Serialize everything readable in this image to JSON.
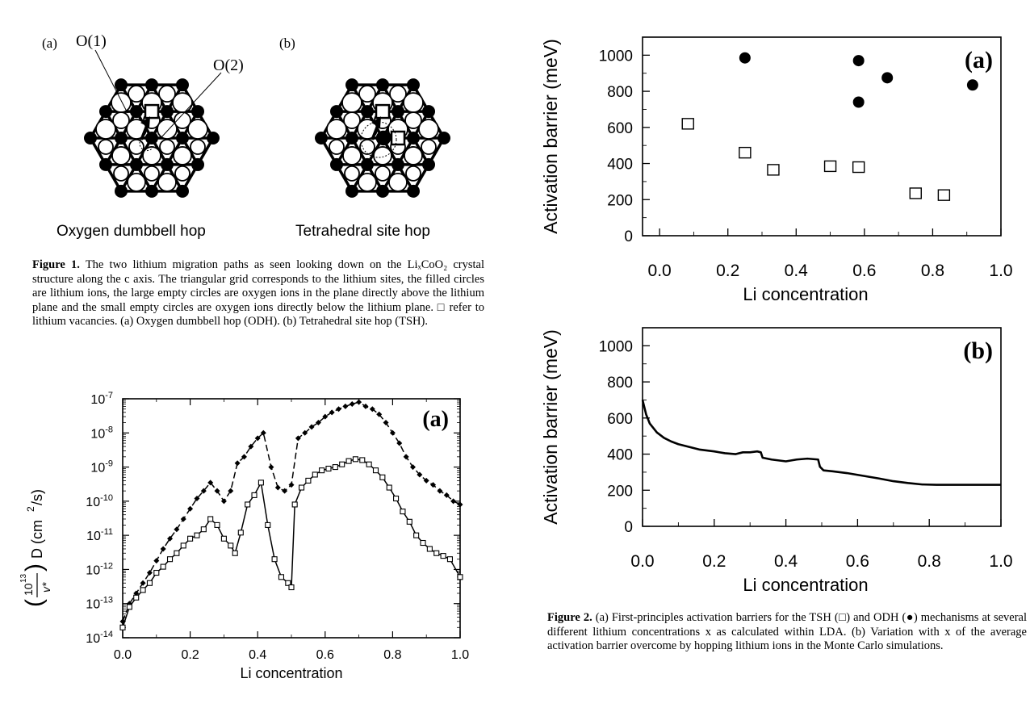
{
  "fig1": {
    "panel_a_label": "(a)",
    "panel_b_label": "(b)",
    "o1_label": "O(1)",
    "o2_label": "O(2)",
    "panel_a_title": "Oxygen dumbbell hop",
    "panel_b_title": "Tetrahedral site hop",
    "caption_head": "Figure 1.",
    "caption_body": "The two lithium migration paths as seen looking down on the LiₓCoO₂ crystal structure along the c axis. The triangular grid corresponds to the lithium sites, the filled circles are lithium ions, the large empty circles are oxygen ions in the plane directly above the lithium plane and the small empty circles are oxygen ions directly below the lithium plane. □ refer to lithium vacancies. (a) Oxygen dumbbell hop (ODH). (b) Tetrahedral site hop (TSH)."
  },
  "fig2": {
    "caption_head": "Figure 2.",
    "caption_body": "(a) First-principles activation barriers for the TSH (□) and ODH (●) mechanisms at several different lithium concentrations x as calculated within LDA. (b) Variation with x of the average activation barrier overcome by hopping lithium ions in the Monte Carlo simulations."
  },
  "chart_data": [
    {
      "id": "diffusion",
      "type": "line",
      "panel_label": "(a)",
      "xlabel": "Li  concentration",
      "ylabel": "(10¹³/ν*) D (cm²/s)",
      "xlim": [
        0.0,
        1.0
      ],
      "ylim": [
        1e-14,
        1e-07
      ],
      "yscale": "log",
      "xticks": [
        "0.0",
        "0.2",
        "0.4",
        "0.6",
        "0.8",
        "1.0"
      ],
      "yticks": [
        "10-7",
        "10-8",
        "10-9",
        "10-10",
        "10-11",
        "10-12",
        "10-13",
        "10-14"
      ],
      "series": [
        {
          "marker": "diamond",
          "style": "dashed",
          "x": [
            0.0,
            0.02,
            0.04,
            0.06,
            0.08,
            0.1,
            0.12,
            0.14,
            0.16,
            0.18,
            0.2,
            0.22,
            0.24,
            0.26,
            0.28,
            0.3,
            0.32,
            0.34,
            0.36,
            0.38,
            0.4,
            0.417,
            0.44,
            0.46,
            0.48,
            0.5,
            0.52,
            0.54,
            0.56,
            0.58,
            0.6,
            0.62,
            0.64,
            0.66,
            0.68,
            0.7,
            0.72,
            0.74,
            0.76,
            0.78,
            0.8,
            0.82,
            0.84,
            0.86,
            0.88,
            0.9,
            0.92,
            0.94,
            0.96,
            0.98,
            1.0
          ],
          "y": [
            3e-14,
            1e-13,
            2e-13,
            4e-13,
            8e-13,
            1.8e-12,
            4e-12,
            8e-12,
            1.5e-11,
            3e-11,
            6e-11,
            1.2e-10,
            2e-10,
            3.5e-10,
            2e-10,
            1e-10,
            2e-10,
            1.3e-09,
            2e-09,
            4e-09,
            7e-09,
            1e-08,
            1e-09,
            2.5e-10,
            2e-10,
            3e-10,
            7e-09,
            1e-08,
            1.5e-08,
            2e-08,
            3e-08,
            4e-08,
            5e-08,
            6e-08,
            7e-08,
            8e-08,
            6e-08,
            5e-08,
            3.5e-08,
            2e-08,
            1e-08,
            5e-09,
            2e-09,
            1e-09,
            6e-10,
            4e-10,
            3e-10,
            2e-10,
            1.5e-10,
            1e-10,
            8e-11
          ]
        },
        {
          "marker": "square",
          "style": "solid",
          "x": [
            0.0,
            0.02,
            0.04,
            0.06,
            0.08,
            0.1,
            0.12,
            0.14,
            0.16,
            0.18,
            0.2,
            0.22,
            0.24,
            0.26,
            0.28,
            0.3,
            0.32,
            0.333,
            0.35,
            0.37,
            0.39,
            0.41,
            0.43,
            0.45,
            0.47,
            0.49,
            0.5,
            0.51,
            0.53,
            0.55,
            0.57,
            0.59,
            0.61,
            0.63,
            0.65,
            0.67,
            0.69,
            0.71,
            0.73,
            0.75,
            0.77,
            0.79,
            0.81,
            0.83,
            0.85,
            0.87,
            0.89,
            0.91,
            0.93,
            0.95,
            0.97,
            1.0
          ],
          "y": [
            2e-14,
            8e-14,
            1.5e-13,
            2.5e-13,
            4e-13,
            8e-13,
            1.2e-12,
            2e-12,
            3e-12,
            5e-12,
            8e-12,
            1e-11,
            1.5e-11,
            3e-11,
            2e-11,
            8e-12,
            5e-12,
            3e-12,
            1.2e-11,
            8e-11,
            1.5e-10,
            3.5e-10,
            2e-11,
            2e-12,
            6e-13,
            4e-13,
            3e-13,
            8e-11,
            2.5e-10,
            4e-10,
            6e-10,
            8e-10,
            9e-10,
            1e-09,
            1.2e-09,
            1.5e-09,
            1.7e-09,
            1.6e-09,
            1.2e-09,
            8e-10,
            5e-10,
            2.5e-10,
            1.2e-10,
            5e-11,
            2.5e-11,
            1e-11,
            6e-12,
            4e-12,
            3e-12,
            2.5e-12,
            2e-12,
            6e-13
          ]
        }
      ]
    },
    {
      "id": "barriers",
      "type": "scatter",
      "panel_label": "(a)",
      "xlabel": "Li concentration",
      "ylabel": "Activation barrier (meV)",
      "xlim": [
        -0.05,
        1.0
      ],
      "ylim": [
        0,
        1100
      ],
      "xticks": [
        "0.0",
        "0.2",
        "0.4",
        "0.6",
        "0.8",
        "1.0"
      ],
      "yticks": [
        "0",
        "200",
        "400",
        "600",
        "800",
        "1000"
      ],
      "series": [
        {
          "marker": "open-square",
          "x": [
            0.083,
            0.25,
            0.333,
            0.5,
            0.583,
            0.75,
            0.833
          ],
          "y": [
            620,
            460,
            365,
            385,
            380,
            235,
            225
          ]
        },
        {
          "marker": "filled-circle",
          "x": [
            0.25,
            0.583,
            0.583,
            0.667,
            0.917
          ],
          "y": [
            985,
            970,
            740,
            875,
            835
          ]
        }
      ]
    },
    {
      "id": "avg_barrier",
      "type": "line",
      "panel_label": "(b)",
      "xlabel": "Li concentration",
      "ylabel": "Activation barrier (meV)",
      "xlim": [
        0.0,
        1.0
      ],
      "ylim": [
        0,
        1100
      ],
      "xticks": [
        "0.0",
        "0.2",
        "0.4",
        "0.6",
        "0.8",
        "1.0"
      ],
      "yticks": [
        "0",
        "200",
        "400",
        "600",
        "800",
        "1000"
      ],
      "series": [
        {
          "x": [
            0.0,
            0.01,
            0.02,
            0.04,
            0.06,
            0.08,
            0.1,
            0.13,
            0.16,
            0.2,
            0.23,
            0.26,
            0.28,
            0.3,
            0.32,
            0.33,
            0.335,
            0.36,
            0.4,
            0.43,
            0.46,
            0.49,
            0.495,
            0.505,
            0.53,
            0.57,
            0.6,
            0.63,
            0.66,
            0.7,
            0.74,
            0.78,
            0.82,
            0.86,
            0.9,
            0.95,
            1.0
          ],
          "y": [
            700,
            620,
            570,
            520,
            490,
            470,
            455,
            440,
            425,
            415,
            405,
            400,
            410,
            410,
            415,
            410,
            380,
            370,
            360,
            370,
            375,
            370,
            330,
            310,
            305,
            295,
            285,
            275,
            265,
            250,
            240,
            232,
            230,
            230,
            230,
            230,
            230
          ]
        }
      ]
    }
  ]
}
